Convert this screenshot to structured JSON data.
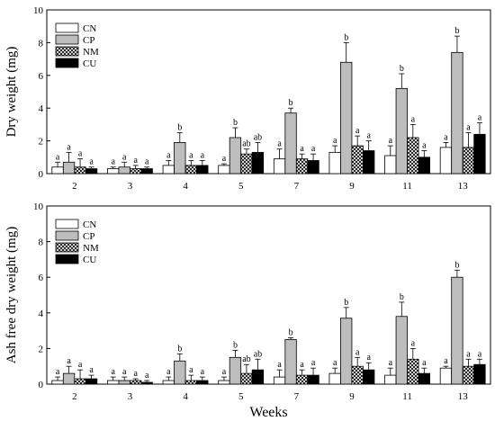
{
  "chart_data": [
    {
      "type": "bar",
      "ylabel": "Dry weight (mg)",
      "ylim": [
        0,
        10
      ],
      "yticks": [
        0,
        2,
        4,
        6,
        8,
        10
      ],
      "categories": [
        "2",
        "3",
        "4",
        "5",
        "7",
        "9",
        "11",
        "13"
      ],
      "legend_position": "top-left",
      "series": [
        {
          "name": "CN",
          "values": [
            0.4,
            0.3,
            0.5,
            0.5,
            0.9,
            1.3,
            1.1,
            1.6
          ],
          "errors": [
            0.3,
            0.1,
            0.3,
            0.1,
            0.6,
            0.4,
            0.6,
            0.3
          ],
          "labels": [
            "a",
            "a",
            "a",
            "a",
            "a",
            "a",
            "a",
            "a"
          ]
        },
        {
          "name": "CP",
          "values": [
            0.7,
            0.4,
            1.9,
            2.2,
            3.7,
            6.8,
            5.2,
            7.4
          ],
          "errors": [
            0.6,
            0.3,
            0.6,
            0.6,
            0.3,
            1.2,
            0.9,
            1.0
          ],
          "labels": [
            "a",
            "a",
            "b",
            "b",
            "b",
            "b",
            "b",
            "b"
          ]
        },
        {
          "name": "NM",
          "values": [
            0.4,
            0.3,
            0.5,
            1.2,
            0.9,
            1.7,
            2.2,
            1.6
          ],
          "errors": [
            0.5,
            0.2,
            0.3,
            0.3,
            0.3,
            0.6,
            0.8,
            0.9
          ],
          "labels": [
            "a",
            "a",
            "a",
            "ab",
            "a",
            "a",
            "a",
            "a"
          ]
        },
        {
          "name": "CU",
          "values": [
            0.3,
            0.3,
            0.5,
            1.3,
            0.8,
            1.4,
            1.0,
            2.4
          ],
          "errors": [
            0.1,
            0.1,
            0.3,
            0.6,
            0.4,
            0.6,
            0.4,
            0.7
          ],
          "labels": [
            "a",
            "a",
            "a",
            "ab",
            "a",
            "a",
            "a",
            "a"
          ]
        }
      ]
    },
    {
      "type": "bar",
      "ylabel": "Ash free dry weight (mg)",
      "xlabel": "Weeks",
      "ylim": [
        0,
        10
      ],
      "yticks": [
        0,
        2,
        4,
        6,
        8,
        10
      ],
      "categories": [
        "2",
        "3",
        "4",
        "5",
        "7",
        "9",
        "11",
        "13"
      ],
      "legend_position": "top-left",
      "series": [
        {
          "name": "CN",
          "values": [
            0.2,
            0.2,
            0.2,
            0.2,
            0.4,
            0.6,
            0.5,
            0.9
          ],
          "errors": [
            0.2,
            0.2,
            0.2,
            0.2,
            0.4,
            0.3,
            0.4,
            0.1
          ],
          "labels": [
            "a",
            "a",
            "a",
            "a",
            "a",
            "a",
            "a",
            "a"
          ]
        },
        {
          "name": "CP",
          "values": [
            0.6,
            0.2,
            1.3,
            1.5,
            2.5,
            3.7,
            3.8,
            6.0
          ],
          "errors": [
            0.4,
            0.2,
            0.4,
            0.4,
            0.1,
            0.6,
            0.8,
            0.4
          ],
          "labels": [
            "a",
            "a",
            "b",
            "b",
            "b",
            "b",
            "b",
            "b"
          ]
        },
        {
          "name": "NM",
          "values": [
            0.3,
            0.2,
            0.2,
            0.6,
            0.5,
            1.0,
            1.4,
            1.0
          ],
          "errors": [
            0.5,
            0.1,
            0.3,
            0.5,
            0.3,
            0.5,
            0.6,
            0.4
          ],
          "labels": [
            "a",
            "a",
            "a",
            "ab",
            "a",
            "a",
            "a",
            "a"
          ]
        },
        {
          "name": "CU",
          "values": [
            0.3,
            0.1,
            0.2,
            0.8,
            0.5,
            0.8,
            0.6,
            1.1
          ],
          "errors": [
            0.2,
            0.1,
            0.2,
            0.6,
            0.4,
            0.4,
            0.3,
            0.3
          ],
          "labels": [
            "a",
            "a",
            "a",
            "ab",
            "a",
            "a",
            "a",
            "a"
          ]
        }
      ]
    }
  ],
  "colors": {
    "CN": "#ffffff",
    "CP": "#bdbdbd",
    "NM": "crosshatch",
    "CU": "#000000"
  }
}
